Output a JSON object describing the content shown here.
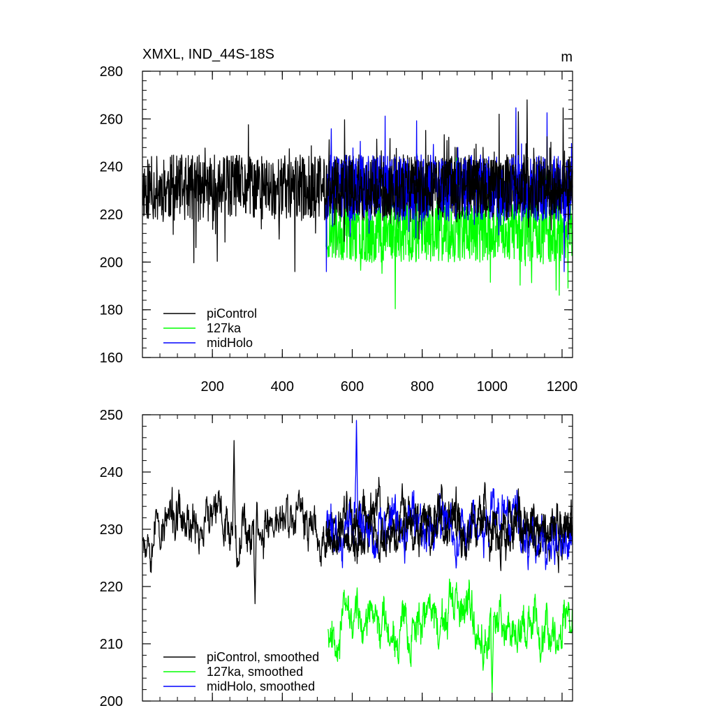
{
  "chart_data": [
    {
      "type": "line",
      "title": "XMXL, IND_44S-18S",
      "units": "m",
      "xlim": [
        0,
        1230
      ],
      "ylim": [
        160,
        280
      ],
      "xticks": [
        200,
        400,
        600,
        800,
        1000,
        1200
      ],
      "xtick_labels": [
        "200",
        "400",
        "600",
        "800",
        "1000",
        "1200"
      ],
      "yticks": [
        160,
        180,
        200,
        220,
        240,
        260,
        280
      ],
      "ytick_labels": [
        "160",
        "180",
        "200",
        "220",
        "240",
        "260",
        "280"
      ],
      "grid": false,
      "legend_position": "bottom-left",
      "series": [
        {
          "name": "piControl",
          "color": "#000000",
          "x_range": [
            1,
            1230
          ],
          "y_mean": 231,
          "y_amp": 14,
          "y_min": 191,
          "y_max": 268,
          "seed": 11
        },
        {
          "name": "127ka",
          "color": "#00ff00",
          "x_range": [
            525,
            1230
          ],
          "y_mean": 213,
          "y_amp": 13,
          "y_min": 176,
          "y_max": 256,
          "seed": 23
        },
        {
          "name": "midHolo",
          "color": "#0000ff",
          "x_range": [
            525,
            1230
          ],
          "y_mean": 231,
          "y_amp": 14,
          "y_min": 196,
          "y_max": 269,
          "seed": 37
        },
        {
          "name": "piControl-overlay",
          "color": "#000000",
          "x_range": [
            525,
            1230
          ],
          "y_mean": 231,
          "y_amp": 12,
          "y_min": 200,
          "y_max": 262,
          "seed": 41
        }
      ],
      "legend": [
        {
          "label": "piControl",
          "color": "#000000"
        },
        {
          "label": "127ka",
          "color": "#00ff00"
        },
        {
          "label": "midHolo",
          "color": "#0000ff"
        }
      ]
    },
    {
      "type": "line",
      "xlim": [
        0,
        1230
      ],
      "ylim": [
        200,
        250
      ],
      "xticks": [
        200,
        400,
        600,
        800,
        1000,
        1200
      ],
      "yticks": [
        200,
        210,
        220,
        230,
        240,
        250
      ],
      "ytick_labels": [
        "200",
        "210",
        "220",
        "230",
        "240",
        "250"
      ],
      "grid": false,
      "legend_position": "bottom-left",
      "series": [
        {
          "name": "piControl, smoothed",
          "color": "#000000",
          "x_range": [
            1,
            1230
          ],
          "y_mean": 231,
          "y_amp": 5,
          "y_min": 217,
          "y_max": 245.5,
          "seed": 53
        },
        {
          "name": "127ka, smoothed",
          "color": "#00ff00",
          "x_range": [
            530,
            1230
          ],
          "y_mean": 214,
          "y_amp": 4.5,
          "y_min": 201,
          "y_max": 225,
          "seed": 67
        },
        {
          "name": "midHolo, smoothed",
          "color": "#0000ff",
          "x_range": [
            525,
            1230
          ],
          "y_mean": 230,
          "y_amp": 5,
          "y_min": 218,
          "y_max": 249,
          "seed": 71
        },
        {
          "name": "piControl-overlay",
          "color": "#000000",
          "x_range": [
            525,
            1230
          ],
          "y_mean": 230,
          "y_amp": 4.5,
          "y_min": 220,
          "y_max": 243,
          "seed": 79
        }
      ],
      "peaks": [
        {
          "series": 2,
          "x": 612,
          "y": 249
        },
        {
          "series": 0,
          "x": 262,
          "y": 245.5
        },
        {
          "series": 0,
          "x": 322,
          "y": 217
        },
        {
          "series": 1,
          "x": 1000,
          "y": 201.5
        }
      ],
      "legend": [
        {
          "label": "piControl, smoothed",
          "color": "#000000"
        },
        {
          "label": "127ka, smoothed",
          "color": "#00ff00"
        },
        {
          "label": "midHolo, smoothed",
          "color": "#0000ff"
        }
      ]
    }
  ]
}
